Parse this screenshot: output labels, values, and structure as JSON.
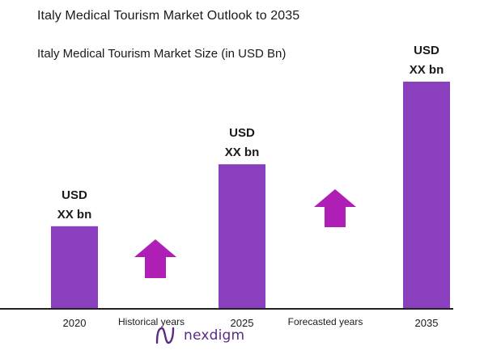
{
  "header": {
    "title": "Italy Medical Tourism Market Outlook to 2035",
    "subtitle": "Italy Medical Tourism Market Size (in USD Bn)"
  },
  "chart_data": {
    "type": "bar",
    "categories": [
      "2020",
      "2025",
      "2035"
    ],
    "values": [
      1,
      1.75,
      2.75
    ],
    "value_labels": [
      [
        "USD",
        "XX bn"
      ],
      [
        "USD",
        "XX bn"
      ],
      [
        "USD",
        "XX bn"
      ]
    ],
    "ylim": [
      0,
      3
    ],
    "grid": false,
    "period_labels": [
      "Historical years",
      "Forecasted years"
    ],
    "colors": {
      "bar": "#8a3fbf",
      "arrow": "#b01fb5",
      "axis": "#222222"
    }
  },
  "brand": {
    "name": "nexdigm",
    "icon": "nexdigm-logo-icon",
    "color": "#5b2a86"
  }
}
